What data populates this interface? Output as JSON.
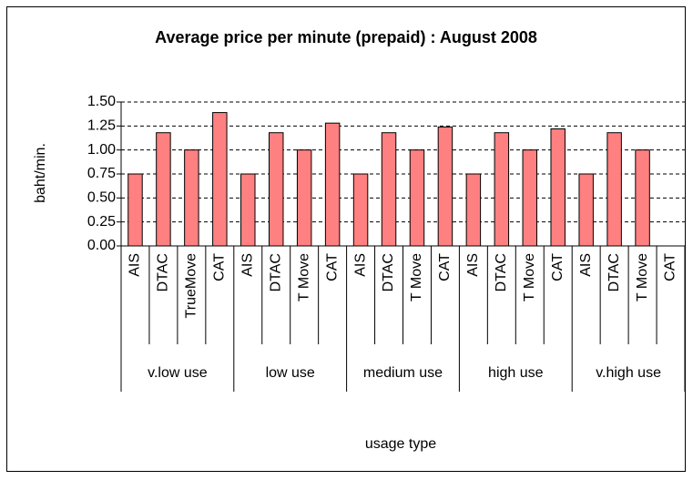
{
  "chart_data": {
    "type": "bar",
    "title": "Average price per minute (prepaid) : August 2008",
    "y_label": "baht/min.",
    "x_label": "usage type",
    "groups": [
      "v.low  use",
      "low  use",
      "medium use",
      "high use",
      "v.high use"
    ],
    "categories": [
      "AIS",
      "DTAC",
      "TrueMove",
      "CAT",
      "AIS",
      "DTAC",
      "T Move",
      "CAT",
      "AIS",
      "DTAC",
      "T Move",
      "CAT",
      "AIS",
      "DTAC",
      "T Move",
      "CAT",
      "AIS",
      "DTAC",
      "T Move",
      "CAT"
    ],
    "values": [
      0.75,
      1.18,
      1.0,
      1.39,
      0.75,
      1.18,
      1.0,
      1.28,
      0.75,
      1.18,
      1.0,
      1.24,
      0.75,
      1.18,
      1.0,
      1.22,
      0.75,
      1.18,
      1.0,
      null
    ],
    "color": "#ff8080",
    "ylim": [
      0,
      1.5
    ],
    "yticks": [
      {
        "value": 0,
        "label": "0.00"
      },
      0.25,
      {
        "value": 0.5,
        "label": "0.50"
      },
      0.75,
      {
        "value": 1,
        "label": "1.00"
      },
      1.25,
      {
        "value": 1.5,
        "label": "1.50"
      }
    ],
    "grid": true
  }
}
